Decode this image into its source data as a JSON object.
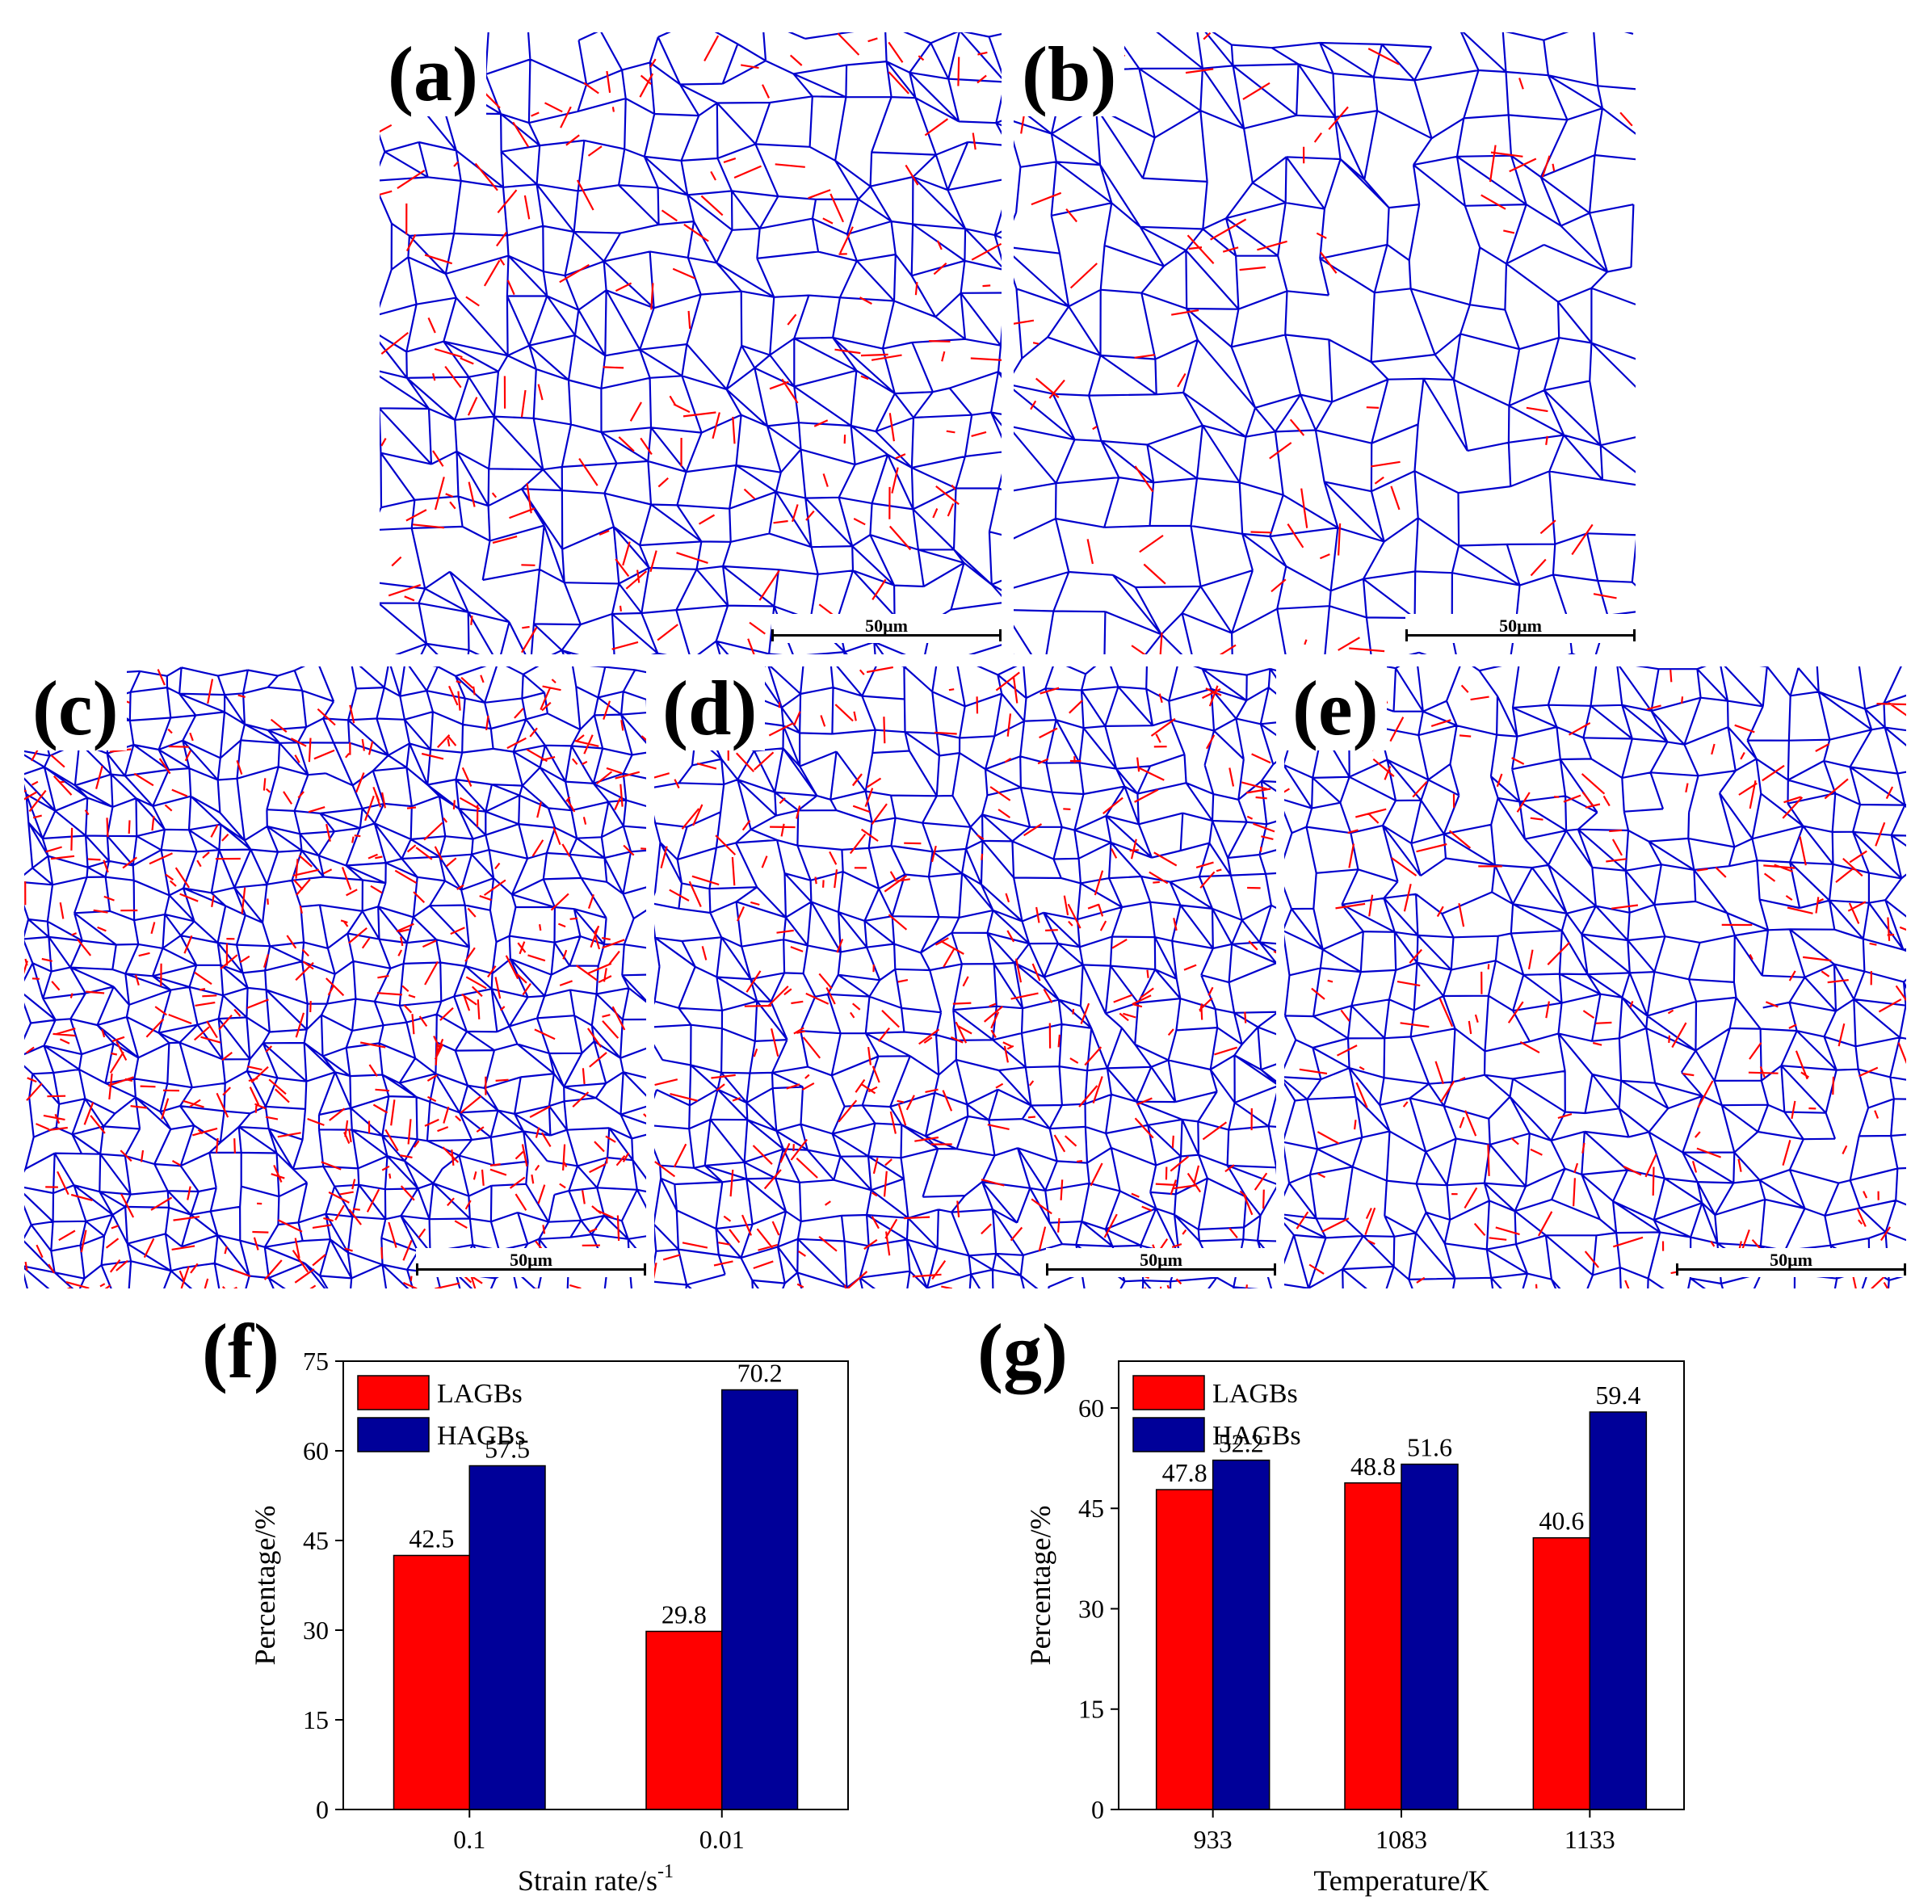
{
  "micrographs": [
    {
      "label": "(a)",
      "scale": "50μm",
      "density": 0.55,
      "red": 0.22
    },
    {
      "label": "(b)",
      "scale": "50μm",
      "density": 0.35,
      "red": 0.14
    },
    {
      "label": "(c)",
      "scale": "50μm",
      "density": 0.9,
      "red": 0.35
    },
    {
      "label": "(d)",
      "scale": "50μm",
      "density": 0.8,
      "red": 0.28
    },
    {
      "label": "(e)",
      "scale": "50μm",
      "density": 0.7,
      "red": 0.22
    }
  ],
  "colors": {
    "lagb": "#ff0000",
    "hagb": "#0000cc"
  },
  "chart_data": [
    {
      "panel_label": "(f)",
      "type": "bar",
      "categories": [
        "0.1",
        "0.01"
      ],
      "series": [
        {
          "name": "LAGBs",
          "values": [
            42.5,
            29.8
          ],
          "color": "#ff0000"
        },
        {
          "name": "HAGBs",
          "values": [
            57.5,
            70.2
          ],
          "color": "#000099"
        }
      ],
      "data_labels": [
        [
          "42.5",
          "29.8"
        ],
        [
          "57.5",
          "70.2"
        ]
      ],
      "xlabel": "Strain rate/s",
      "xlabel_sup": "-1",
      "ylabel": "Percentage/%",
      "ylim": [
        0,
        75
      ],
      "yticks": [
        0,
        15,
        30,
        45,
        60,
        75
      ],
      "legend_position": "top-left"
    },
    {
      "panel_label": "(g)",
      "type": "bar",
      "categories": [
        "933",
        "1083",
        "1133"
      ],
      "series": [
        {
          "name": "LAGBs",
          "values": [
            47.8,
            48.8,
            40.6
          ],
          "color": "#ff0000"
        },
        {
          "name": "HAGBs",
          "values": [
            52.2,
            51.6,
            59.4
          ],
          "color": "#000099"
        }
      ],
      "data_labels": [
        [
          "47.8",
          "48.8",
          "40.6"
        ],
        [
          "52.2",
          "51.6",
          "59.4"
        ]
      ],
      "xlabel": "Temperature/K",
      "ylabel": "Percentage/%",
      "ylim": [
        0,
        67
      ],
      "yticks": [
        0,
        15,
        30,
        45,
        60
      ],
      "legend_position": "top-left"
    }
  ]
}
